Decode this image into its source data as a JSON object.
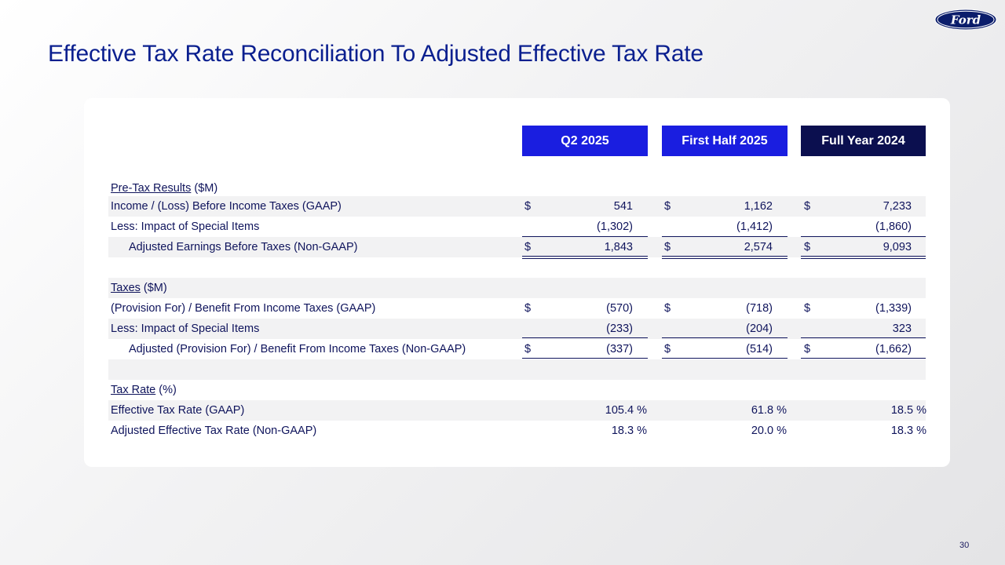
{
  "brand": {
    "logo_text": "Ford"
  },
  "title": "Effective Tax Rate Reconciliation To Adjusted Effective Tax Rate",
  "columns": [
    "Q2 2025",
    "First Half 2025",
    "Full Year 2024"
  ],
  "pretax": {
    "section_label": "Pre-Tax Results",
    "section_unit": " ($M)",
    "rows": [
      {
        "label": "Income / (Loss) Before Income Taxes (GAAP)",
        "currency": "$",
        "values": [
          "541",
          "1,162",
          "7,233"
        ]
      },
      {
        "label": "Less:  Impact of Special Items",
        "currency": "",
        "values": [
          "(1,302)",
          "(1,412)",
          "(1,860)"
        ]
      },
      {
        "label": "Adjusted Earnings Before Taxes (Non-GAAP)",
        "currency": "$",
        "values": [
          "1,843",
          "2,574",
          "9,093"
        ]
      }
    ]
  },
  "taxes": {
    "section_label": "Taxes",
    "section_unit": " ($M)",
    "rows": [
      {
        "label": "(Provision For) / Benefit From Income Taxes (GAAP)",
        "currency": "$",
        "values": [
          "(570)",
          "(718)",
          "(1,339)"
        ]
      },
      {
        "label": "Less:  Impact of Special Items",
        "currency": "",
        "values": [
          "(233)",
          "(204)",
          "323"
        ]
      },
      {
        "label": "Adjusted (Provision For) / Benefit From Income Taxes (Non-GAAP)",
        "currency": "$",
        "values": [
          "(337)",
          "(514)",
          "(1,662)"
        ]
      }
    ]
  },
  "taxrate": {
    "section_label": "Tax Rate",
    "section_unit": " (%)",
    "rows": [
      {
        "label": "Effective Tax Rate (GAAP)",
        "values": [
          "105.4 %",
          "61.8 %",
          "18.5 %"
        ]
      },
      {
        "label": "Adjusted Effective Tax Rate (Non-GAAP)",
        "values": [
          "18.3 %",
          "20.0 %",
          "18.3 %"
        ]
      }
    ]
  },
  "page_number": "30",
  "colors": {
    "accent_blue": "#1a1ee0",
    "navy": "#0b0f4f",
    "title_blue": "#0a1f8f"
  }
}
